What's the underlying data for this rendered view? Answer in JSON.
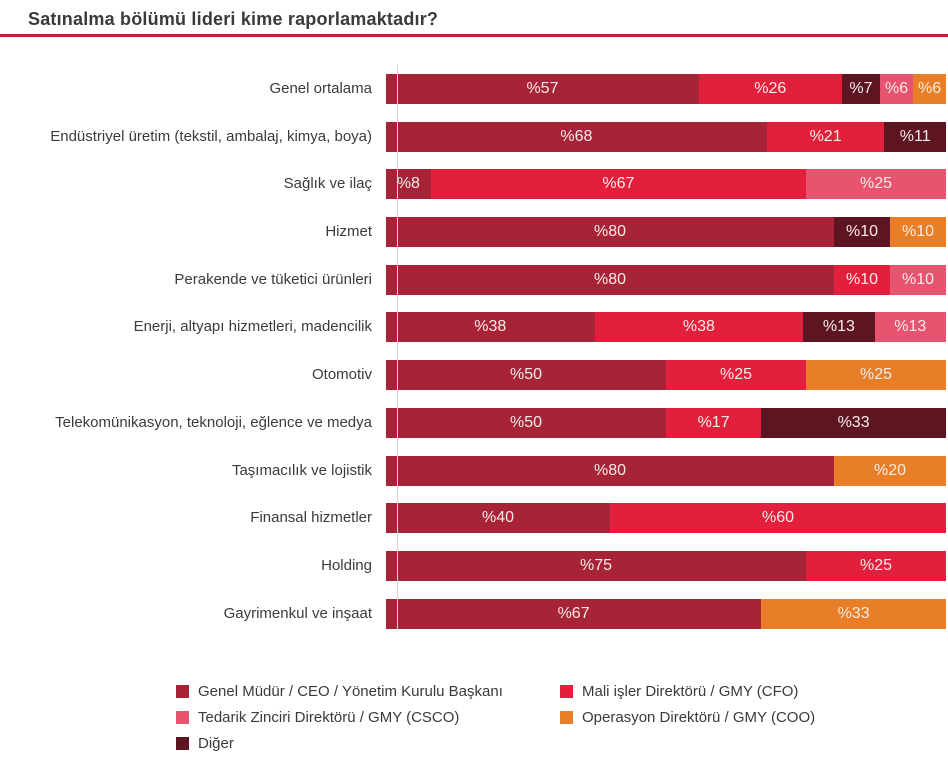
{
  "title": "Satınalma bölümü lideri kime raporlamaktadır?",
  "theme": {
    "title_color": "#3a3a3a",
    "underline_color": "#c0203a",
    "axis_line_color": "#d6d6d6",
    "bar_label_color": "#f7ece6",
    "category_label_color": "#3b3b3b",
    "series_colors": {
      "ceo": "#a72438",
      "cfo": "#e2203d",
      "csco": "#e6546f",
      "coo": "#e87e27",
      "diger": "#5d1522"
    }
  },
  "chart_data": {
    "type": "bar",
    "orientation": "horizontal",
    "stacked": true,
    "units": "percent",
    "value_prefix": "%",
    "title": "Satınalma bölümü lideri kime raporlamaktadır?",
    "series_names": {
      "ceo": "Genel Müdür / CEO / Yönetim Kurulu Başkanı",
      "cfo": "Mali işler Direktörü / GMY (CFO)",
      "csco": "Tedarik Zinciri Direktörü / GMY (CSCO)",
      "coo": "Operasyon Direktörü / GMY (COO)",
      "diger": "Diğer"
    },
    "categories": [
      "Genel ortalama",
      "Endüstriyel üretim (tekstil, ambalaj, kimya, boya)",
      "Sağlık ve ilaç",
      "Hizmet",
      "Perakende ve tüketici ürünleri",
      "Enerji, altyapı hizmetleri, madencilik",
      "Otomotiv",
      "Telekomünikasyon, teknoloji, eğlence ve medya",
      "Taşımacılık ve lojistik",
      "Finansal hizmetler",
      "Holding",
      "Gayrimenkul ve inşaat"
    ],
    "rows": [
      {
        "category": "Genel ortalama",
        "segments": [
          {
            "series": "ceo",
            "value": 57,
            "label": "%57"
          },
          {
            "series": "cfo",
            "value": 26,
            "label": "%26"
          },
          {
            "series": "diger",
            "value": 7,
            "label": "%7"
          },
          {
            "series": "csco",
            "value": 6,
            "label": "%6"
          },
          {
            "series": "coo",
            "value": 6,
            "label": "%6"
          }
        ]
      },
      {
        "category": "Endüstriyel üretim (tekstil, ambalaj, kimya, boya)",
        "segments": [
          {
            "series": "ceo",
            "value": 68,
            "label": "%68"
          },
          {
            "series": "cfo",
            "value": 21,
            "label": "%21"
          },
          {
            "series": "diger",
            "value": 11,
            "label": "%11"
          }
        ]
      },
      {
        "category": "Sağlık ve ilaç",
        "segments": [
          {
            "series": "ceo",
            "value": 8,
            "label": "%8"
          },
          {
            "series": "cfo",
            "value": 67,
            "label": "%67"
          },
          {
            "series": "csco",
            "value": 25,
            "label": "%25"
          }
        ]
      },
      {
        "category": "Hizmet",
        "segments": [
          {
            "series": "ceo",
            "value": 80,
            "label": "%80"
          },
          {
            "series": "diger",
            "value": 10,
            "label": "%10"
          },
          {
            "series": "coo",
            "value": 10,
            "label": "%10"
          }
        ]
      },
      {
        "category": "Perakende ve tüketici ürünleri",
        "segments": [
          {
            "series": "ceo",
            "value": 80,
            "label": "%80"
          },
          {
            "series": "cfo",
            "value": 10,
            "label": "%10"
          },
          {
            "series": "csco",
            "value": 10,
            "label": "%10"
          }
        ]
      },
      {
        "category": "Enerji, altyapı hizmetleri, madencilik",
        "segments": [
          {
            "series": "ceo",
            "value": 38,
            "label": "%38"
          },
          {
            "series": "cfo",
            "value": 38,
            "label": "%38"
          },
          {
            "series": "diger",
            "value": 13,
            "label": "%13"
          },
          {
            "series": "csco",
            "value": 13,
            "label": "%13"
          }
        ]
      },
      {
        "category": "Otomotiv",
        "segments": [
          {
            "series": "ceo",
            "value": 50,
            "label": "%50"
          },
          {
            "series": "cfo",
            "value": 25,
            "label": "%25"
          },
          {
            "series": "coo",
            "value": 25,
            "label": "%25"
          }
        ]
      },
      {
        "category": "Telekomünikasyon, teknoloji, eğlence ve medya",
        "segments": [
          {
            "series": "ceo",
            "value": 50,
            "label": "%50"
          },
          {
            "series": "cfo",
            "value": 17,
            "label": "%17"
          },
          {
            "series": "diger",
            "value": 33,
            "label": "%33"
          }
        ]
      },
      {
        "category": "Taşımacılık ve lojistik",
        "segments": [
          {
            "series": "ceo",
            "value": 80,
            "label": "%80"
          },
          {
            "series": "coo",
            "value": 20,
            "label": "%20"
          }
        ]
      },
      {
        "category": "Finansal hizmetler",
        "segments": [
          {
            "series": "ceo",
            "value": 40,
            "label": "%40"
          },
          {
            "series": "cfo",
            "value": 60,
            "label": "%60"
          }
        ]
      },
      {
        "category": "Holding",
        "segments": [
          {
            "series": "ceo",
            "value": 75,
            "label": "%75"
          },
          {
            "series": "cfo",
            "value": 25,
            "label": "%25"
          }
        ]
      },
      {
        "category": "Gayrimenkul ve inşaat",
        "segments": [
          {
            "series": "ceo",
            "value": 67,
            "label": "%67"
          },
          {
            "series": "coo",
            "value": 33,
            "label": "%33"
          }
        ]
      }
    ]
  },
  "legend": {
    "columns": [
      [
        {
          "series": "ceo",
          "label": "Genel Müdür / CEO / Yönetim Kurulu Başkanı"
        },
        {
          "series": "csco",
          "label": "Tedarik Zinciri Direktörü / GMY (CSCO)"
        },
        {
          "series": "diger",
          "label": "Diğer"
        }
      ],
      [
        {
          "series": "cfo",
          "label": "Mali işler Direktörü / GMY (CFO)"
        },
        {
          "series": "coo",
          "label": "Operasyon Direktörü / GMY (COO)"
        }
      ]
    ]
  }
}
